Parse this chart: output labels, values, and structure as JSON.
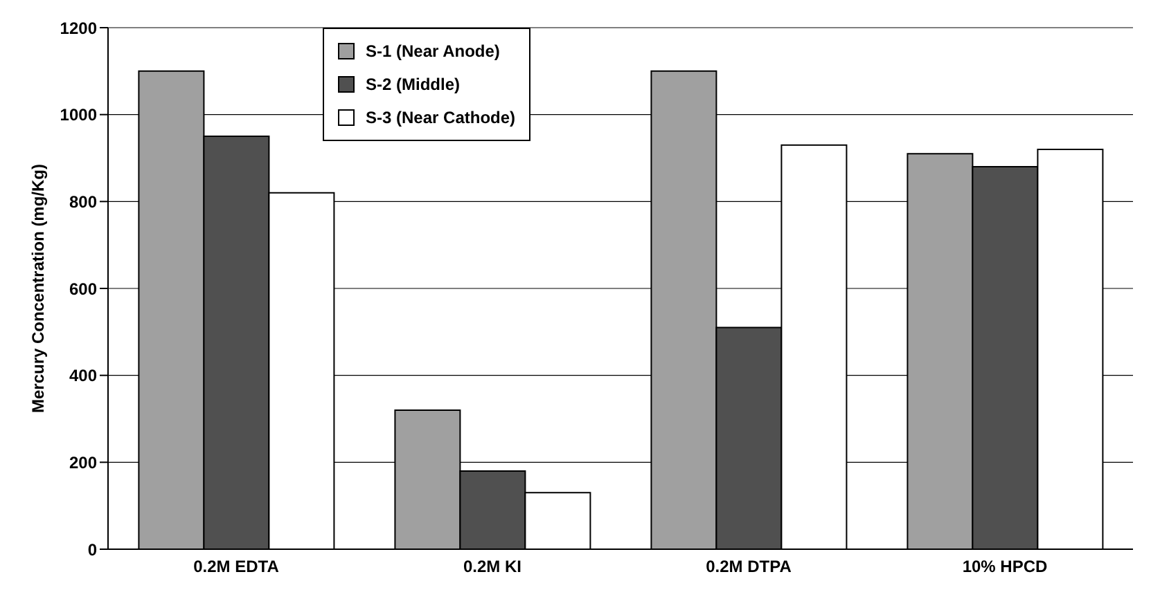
{
  "chart_data": {
    "type": "bar",
    "ylabel": "Mercury Concentration (mg/Kg)",
    "categories": [
      "0.2M EDTA",
      "0.2M KI",
      "0.2M DTPA",
      "10% HPCD"
    ],
    "series": [
      {
        "name": "S-1 (Near Anode)",
        "color": "#a0a0a0",
        "values": [
          1100,
          320,
          1100,
          910
        ]
      },
      {
        "name": "S-2 (Middle)",
        "color": "#505050",
        "values": [
          950,
          180,
          510,
          880
        ]
      },
      {
        "name": "S-3 (Near Cathode)",
        "color": "#ffffff",
        "values": [
          820,
          130,
          930,
          920
        ]
      }
    ],
    "ylim": [
      0,
      1200
    ],
    "yticks": [
      0,
      200,
      400,
      600,
      800,
      1000,
      1200
    ],
    "grid": "y",
    "legend": "top"
  }
}
